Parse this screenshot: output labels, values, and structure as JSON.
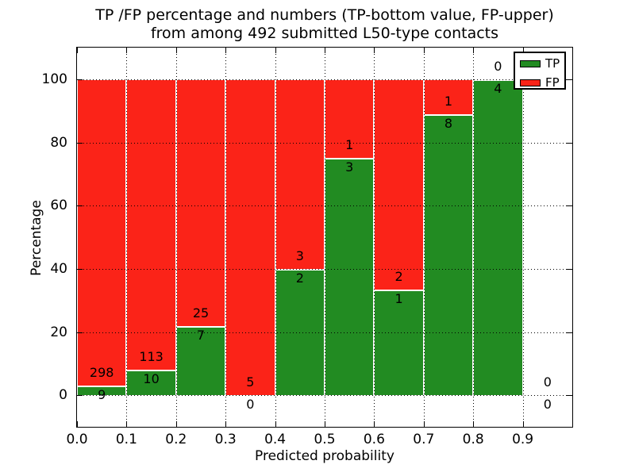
{
  "title": {
    "line1": "TP /FP percentage and numbers (TP-bottom value, FP-upper)",
    "line2": "from among 492 submitted L50-type contacts"
  },
  "axes": {
    "xlabel": "Predicted probability",
    "ylabel": "Percentage",
    "x_tick_labels": [
      "0.0",
      "0.1",
      "0.2",
      "0.3",
      "0.4",
      "0.5",
      "0.6",
      "0.7",
      "0.8",
      "0.9"
    ],
    "y_tick_labels": [
      "0",
      "20",
      "40",
      "60",
      "80",
      "100"
    ]
  },
  "legend": {
    "entries": [
      {
        "label": "TP",
        "color": "#228b22"
      },
      {
        "label": "FP",
        "color": "#fb2318"
      }
    ],
    "position": "upper right"
  },
  "colors": {
    "tp_green": "#228b22",
    "fp_red": "#fb2318",
    "bar_edge": "#ffffff",
    "grid": "#000000",
    "background": "#ffffff",
    "text": "#000000"
  },
  "chart_data": {
    "type": "bar",
    "stacked": true,
    "title": "TP /FP percentage and numbers (TP-bottom value, FP-upper) from among 492 submitted L50-type contacts",
    "xlabel": "Predicted probability",
    "ylabel": "Percentage",
    "xlim": [
      0.0,
      1.0
    ],
    "ylim": [
      -10,
      110
    ],
    "x_ticks": [
      0.0,
      0.1,
      0.2,
      0.3,
      0.4,
      0.5,
      0.6,
      0.7,
      0.8,
      0.9
    ],
    "y_ticks": [
      0,
      20,
      40,
      60,
      80,
      100
    ],
    "grid": "dotted both axes",
    "legend_position": "upper right",
    "total_contacts": 492,
    "series_names": [
      "TP",
      "FP"
    ],
    "bins": [
      {
        "range": [
          0.0,
          0.1
        ],
        "tp": 9,
        "fp": 298,
        "tp_percent": 2.93,
        "fp_percent": 97.07
      },
      {
        "range": [
          0.1,
          0.2
        ],
        "tp": 10,
        "fp": 113,
        "tp_percent": 8.13,
        "fp_percent": 91.87
      },
      {
        "range": [
          0.2,
          0.3
        ],
        "tp": 7,
        "fp": 25,
        "tp_percent": 21.88,
        "fp_percent": 78.12
      },
      {
        "range": [
          0.3,
          0.4
        ],
        "tp": 0,
        "fp": 5,
        "tp_percent": 0.0,
        "fp_percent": 100.0
      },
      {
        "range": [
          0.4,
          0.5
        ],
        "tp": 2,
        "fp": 3,
        "tp_percent": 40.0,
        "fp_percent": 60.0
      },
      {
        "range": [
          0.5,
          0.6
        ],
        "tp": 3,
        "fp": 1,
        "tp_percent": 75.0,
        "fp_percent": 25.0
      },
      {
        "range": [
          0.6,
          0.7
        ],
        "tp": 1,
        "fp": 2,
        "tp_percent": 33.33,
        "fp_percent": 66.67
      },
      {
        "range": [
          0.7,
          0.8
        ],
        "tp": 8,
        "fp": 1,
        "tp_percent": 88.89,
        "fp_percent": 11.11
      },
      {
        "range": [
          0.8,
          0.9
        ],
        "tp": 4,
        "fp": 0,
        "tp_percent": 100.0,
        "fp_percent": 0.0
      },
      {
        "range": [
          0.9,
          1.0
        ],
        "tp": 0,
        "fp": 0,
        "tp_percent": null,
        "fp_percent": null
      }
    ]
  }
}
